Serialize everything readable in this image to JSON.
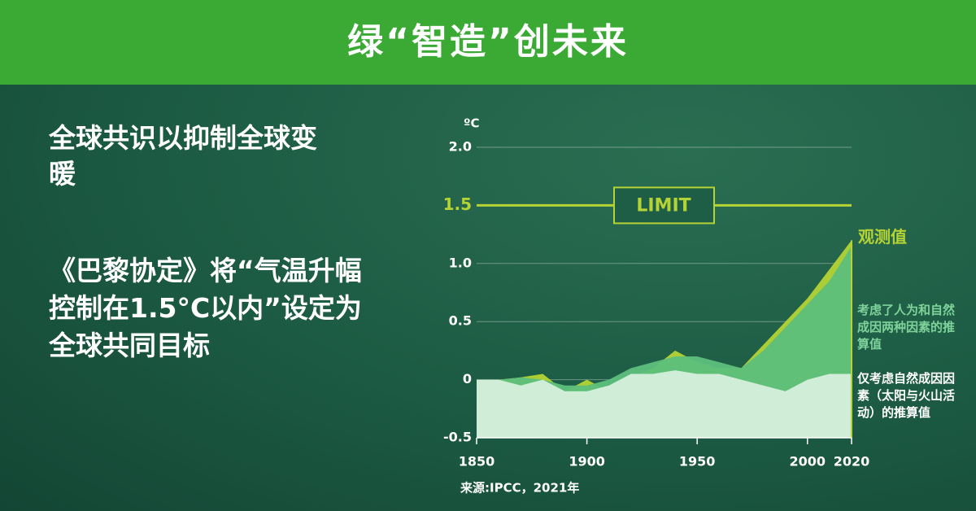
{
  "header": {
    "title": "绿“智造”创未来"
  },
  "body": {
    "headline": "全球共识以抑制全球变暖",
    "paragraph": "《巴黎协定》将“气温升幅控制在1.5°C以内”设定为全球共同目标"
  },
  "chart_data": {
    "type": "area",
    "y_label": "ºC",
    "source": "来源:IPCC，2021年",
    "x": [
      1850,
      1860,
      1870,
      1880,
      1890,
      1900,
      1910,
      1920,
      1930,
      1940,
      1950,
      1960,
      1970,
      1980,
      1990,
      2000,
      2010,
      2020
    ],
    "series": [
      {
        "name": "观测值",
        "color": "#b5d334",
        "values": [
          0.0,
          0.0,
          0.02,
          0.05,
          -0.1,
          0.0,
          -0.1,
          0.02,
          0.1,
          0.25,
          0.15,
          0.1,
          0.1,
          0.3,
          0.5,
          0.7,
          0.95,
          1.2
        ]
      },
      {
        "name": "考虑了人为和自然成因两种因素的推算值",
        "color": "#5dbf7c",
        "values": [
          0.0,
          0.0,
          0.02,
          0.0,
          -0.05,
          -0.05,
          0.0,
          0.1,
          0.15,
          0.2,
          0.2,
          0.15,
          0.1,
          0.25,
          0.45,
          0.65,
          0.85,
          1.15
        ]
      },
      {
        "name": "仅考虑自然成因因素（太阳与火山活动）的推算值",
        "color": "#d6efdd",
        "values": [
          0.0,
          0.0,
          -0.05,
          0.0,
          -0.1,
          -0.1,
          -0.05,
          0.05,
          0.05,
          0.08,
          0.05,
          0.05,
          0.0,
          -0.05,
          -0.1,
          0.0,
          0.05,
          0.05
        ]
      }
    ],
    "legend_colors": [
      "#b5d334",
      "#7fd39a",
      "#ffffff"
    ],
    "xlim": [
      1850,
      2020
    ],
    "xticks": [
      1850,
      1900,
      1950,
      2000,
      2020
    ],
    "ylim": [
      -0.5,
      2.0
    ],
    "yticks": [
      -0.5,
      0,
      0.5,
      {
        "value": 1,
        "label": "1.0"
      },
      {
        "value": 2,
        "label": "2.0"
      }
    ],
    "limit": {
      "value": 1.5,
      "text": "LIMIT",
      "color": "#b5d334"
    },
    "grid": true
  }
}
